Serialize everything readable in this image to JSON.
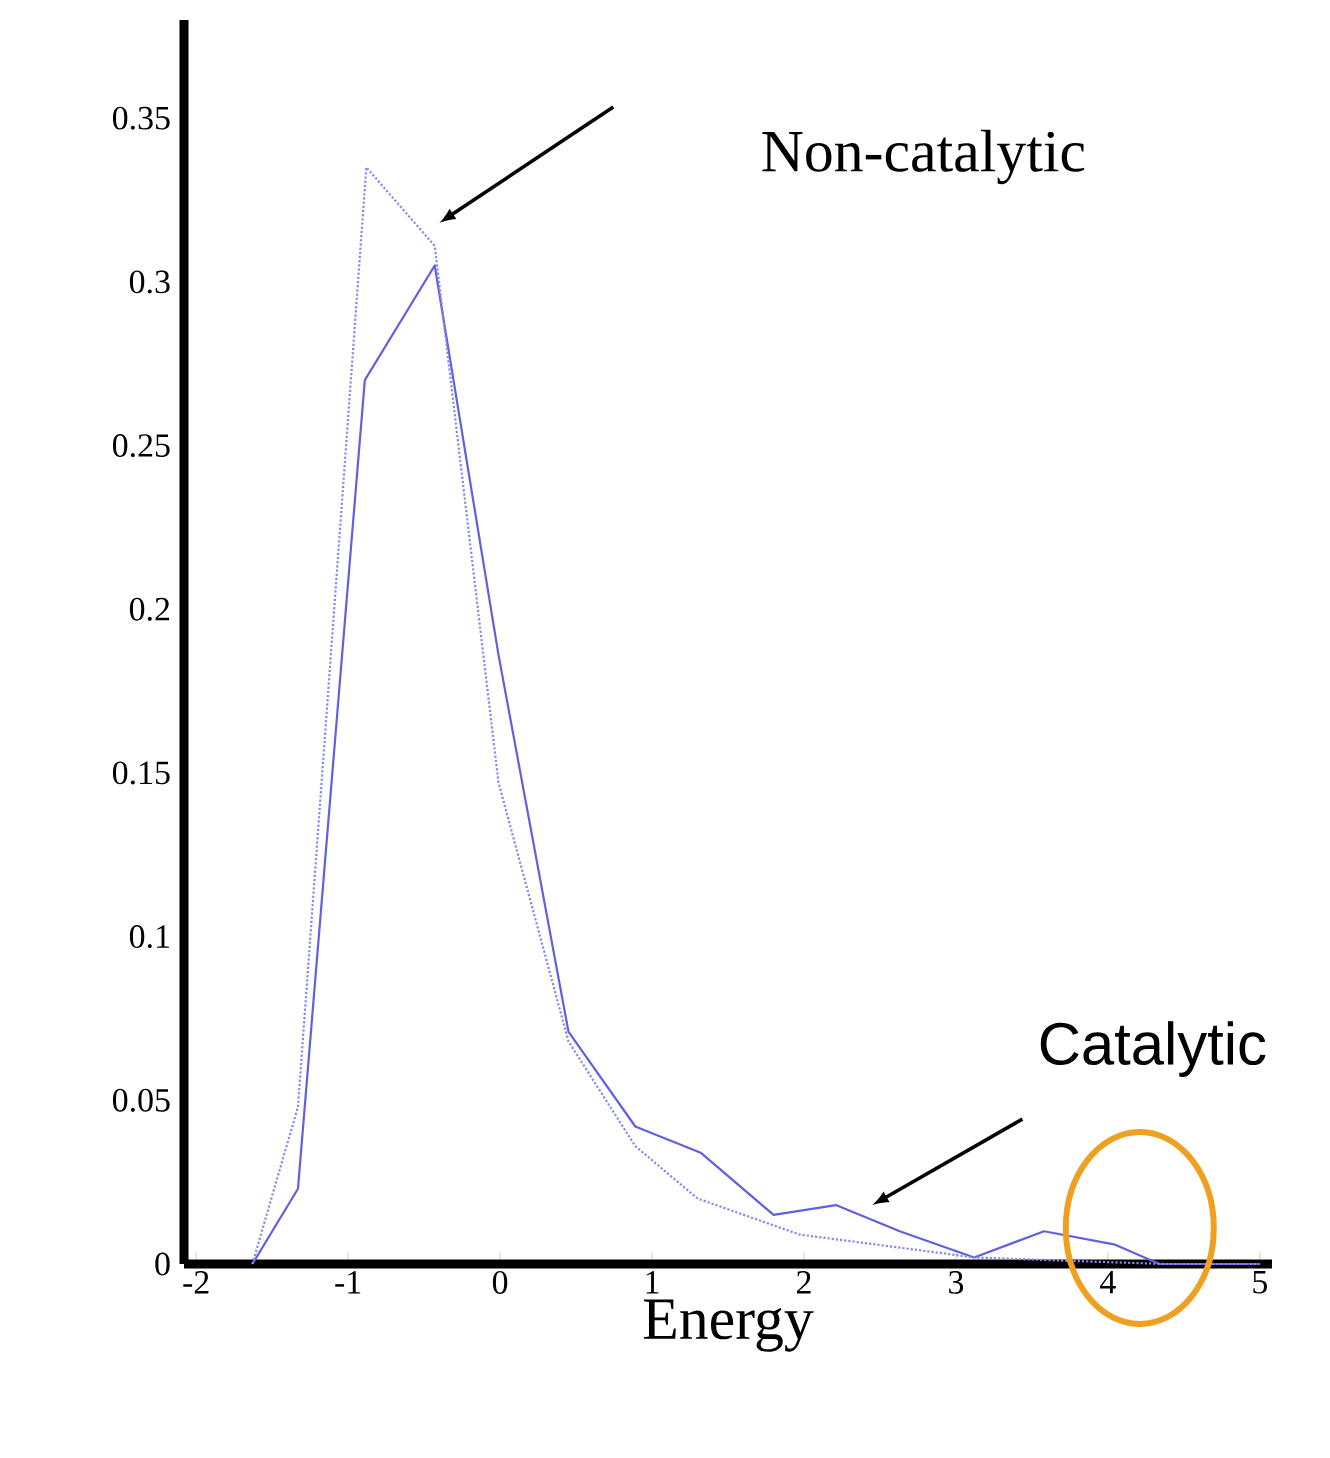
{
  "chart_data": {
    "type": "line",
    "xlabel": "Energy",
    "xlim": [
      -2.08,
      5.08
    ],
    "ylim": [
      0,
      0.38
    ],
    "xticks": [
      -2,
      -1,
      0,
      1,
      2,
      3,
      4,
      5
    ],
    "yticks": [
      0,
      0.05,
      0.1,
      0.15,
      0.2,
      0.25,
      0.3,
      0.35
    ],
    "grid": false,
    "marker": "none",
    "tick_labels": "xy",
    "annotations": [
      "Non-catalytic",
      "Catalytic"
    ],
    "series": [
      {
        "color": "#6060e0",
        "line_style": "solid",
        "x": [
          -1.63,
          -1.33,
          -0.89,
          -0.43,
          -0.01,
          0.45,
          0.89,
          1.32,
          1.8,
          2.21,
          2.63,
          3.12,
          3.58,
          4.04,
          4.34,
          5
        ],
        "values": [
          0,
          0.023,
          0.27,
          0.305,
          0.186,
          0.071,
          0.042,
          0.034,
          0.015,
          0.018,
          0.01,
          0.002,
          0.01,
          0.006,
          0,
          0
        ]
      },
      {
        "color": "#8888ee",
        "line_style": "dotted",
        "x": [
          -1.63,
          -1.33,
          -0.88,
          -0.43,
          -0.01,
          0.45,
          0.89,
          1.3,
          1.97,
          2.63,
          3.12,
          3.72,
          4.38,
          5
        ],
        "values": [
          0,
          0.048,
          0.335,
          0.311,
          0.147,
          0.068,
          0.036,
          0.02,
          0.009,
          0.005,
          0.002,
          0.001,
          0,
          0
        ]
      }
    ]
  }
}
